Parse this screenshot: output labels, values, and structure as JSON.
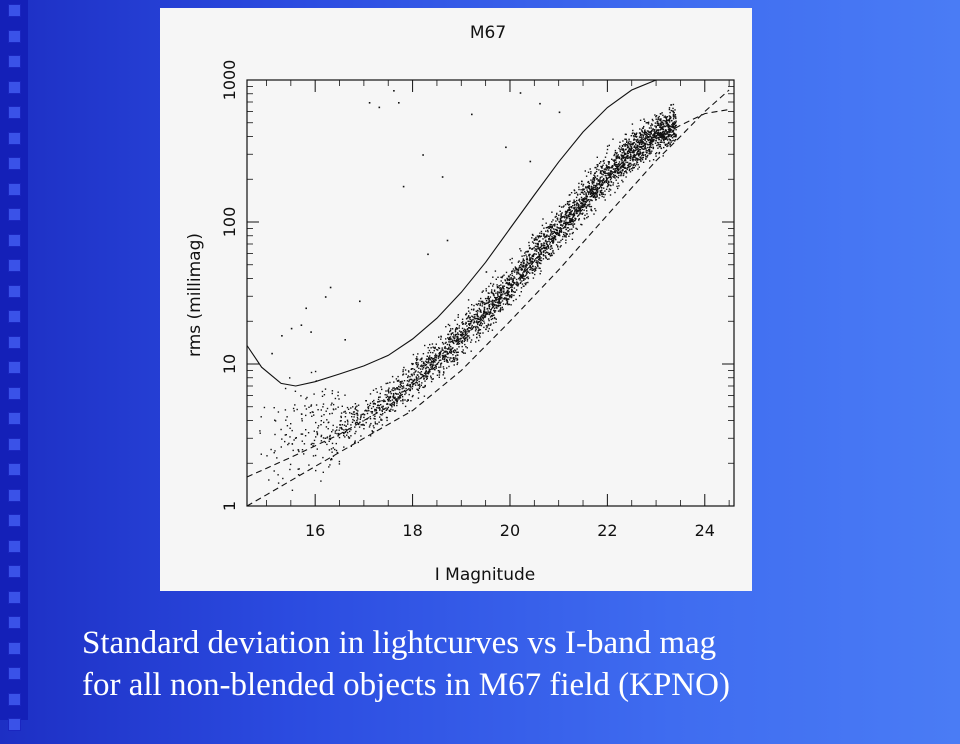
{
  "colors": {
    "background_left": "#1d2fc4",
    "background_right": "#4a7cf5",
    "panel": "#f6f6f6",
    "ink": "#111111",
    "caption_text": "#ffffff"
  },
  "chart_data": {
    "type": "scatter",
    "title": "M67",
    "xlabel": "I Magnitude",
    "ylabel": "rms (millimag)",
    "xlim": [
      14.6,
      24.6
    ],
    "ylim": [
      1,
      1000
    ],
    "yscale": "log",
    "xticks": [
      "16",
      "18",
      "20",
      "22",
      "24"
    ],
    "yticks": [
      "1",
      "10",
      "100",
      "1000"
    ],
    "grid": false,
    "legend": "none",
    "series": [
      {
        "type": "line",
        "style": "solid",
        "points": [
          [
            14.6,
            13.5
          ],
          [
            14.9,
            9.5
          ],
          [
            15.3,
            7.3
          ],
          [
            15.6,
            7.0
          ],
          [
            16.0,
            7.5
          ],
          [
            16.5,
            8.5
          ],
          [
            17.0,
            9.7
          ],
          [
            17.5,
            11.5
          ],
          [
            18.0,
            15.0
          ],
          [
            18.5,
            21.0
          ],
          [
            19.0,
            32.0
          ],
          [
            19.5,
            52.0
          ],
          [
            20.0,
            90.0
          ],
          [
            20.5,
            155.0
          ],
          [
            21.0,
            265.0
          ],
          [
            21.5,
            430.0
          ],
          [
            22.0,
            640.0
          ],
          [
            22.5,
            850.0
          ],
          [
            23.0,
            1000.0
          ]
        ]
      },
      {
        "type": "line",
        "style": "dashed",
        "points": [
          [
            14.6,
            1.0
          ],
          [
            15.0,
            1.2
          ],
          [
            16.0,
            1.9
          ],
          [
            17.0,
            3.0
          ],
          [
            18.0,
            4.7
          ],
          [
            19.0,
            9.0
          ],
          [
            20.0,
            20.0
          ],
          [
            21.0,
            46.0
          ],
          [
            22.0,
            112.0
          ],
          [
            23.0,
            270.0
          ],
          [
            23.5,
            400.0
          ],
          [
            24.0,
            600.0
          ],
          [
            24.5,
            850.0
          ]
        ]
      },
      {
        "type": "line",
        "style": "dashed",
        "points": [
          [
            14.6,
            1.6
          ],
          [
            15.5,
            2.2
          ],
          [
            16.5,
            3.2
          ],
          [
            17.5,
            5.0
          ],
          [
            18.5,
            10.0
          ],
          [
            19.5,
            22.0
          ],
          [
            20.5,
            53.0
          ],
          [
            21.5,
            130.0
          ],
          [
            22.5,
            310.0
          ],
          [
            23.5,
            480.0
          ],
          [
            24.0,
            580.0
          ],
          [
            24.5,
            620.0
          ]
        ]
      },
      {
        "type": "scatter",
        "name": "",
        "description_points": "main stellar locus, rms rising from ~3 mmag at I=15 to ~400 mmag at I=23",
        "locus": [
          [
            14.8,
            3.5
          ],
          [
            15.5,
            3.3
          ],
          [
            16.0,
            3.4
          ],
          [
            16.5,
            3.7
          ],
          [
            17.0,
            4.3
          ],
          [
            17.5,
            5.5
          ],
          [
            18.0,
            7.8
          ],
          [
            18.5,
            11.0
          ],
          [
            19.0,
            16.0
          ],
          [
            19.5,
            24.0
          ],
          [
            20.0,
            37.0
          ],
          [
            20.5,
            58.0
          ],
          [
            21.0,
            92.0
          ],
          [
            21.5,
            145.0
          ],
          [
            22.0,
            220.0
          ],
          [
            22.5,
            320.0
          ],
          [
            23.0,
            430.0
          ],
          [
            23.4,
            480.0
          ]
        ],
        "outliers": [
          [
            15.1,
            12
          ],
          [
            15.3,
            16
          ],
          [
            15.5,
            18
          ],
          [
            15.7,
            19
          ],
          [
            15.9,
            17
          ],
          [
            16.2,
            30
          ],
          [
            16.6,
            15
          ],
          [
            17.1,
            700
          ],
          [
            17.3,
            650
          ],
          [
            17.6,
            850
          ],
          [
            17.7,
            700
          ],
          [
            17.8,
            180
          ],
          [
            18.2,
            300
          ],
          [
            18.3,
            60
          ],
          [
            18.6,
            210
          ],
          [
            18.7,
            75
          ],
          [
            19.2,
            580
          ],
          [
            19.5,
            45
          ],
          [
            19.9,
            340
          ],
          [
            20.2,
            820
          ],
          [
            20.4,
            270
          ],
          [
            20.6,
            690
          ],
          [
            21.0,
            600
          ],
          [
            16.3,
            35
          ],
          [
            16.9,
            28
          ],
          [
            15.8,
            25
          ]
        ]
      }
    ]
  },
  "caption": {
    "line1": "Standard deviation in lightcurves vs I-band mag",
    "line2": "for all non-blended objects in M67 field (KPNO)"
  }
}
